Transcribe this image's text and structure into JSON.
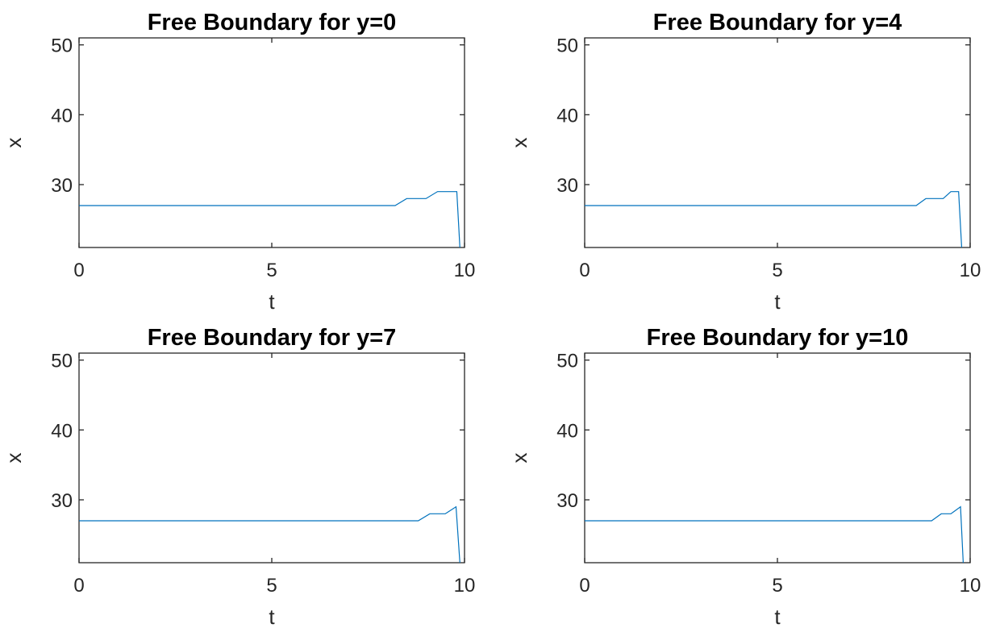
{
  "chart_data": [
    {
      "type": "line",
      "title": "Free Boundary  for y=0",
      "xlabel": "t",
      "ylabel": "x",
      "xlim": [
        0,
        10
      ],
      "ylim": [
        21,
        51
      ],
      "xticks": [
        "0",
        "5",
        "10"
      ],
      "yticks": [
        "30",
        "40",
        "50"
      ],
      "grid": false,
      "series": [
        {
          "color": "#0072BD",
          "x": [
            0,
            8.2,
            8.5,
            9.0,
            9.3,
            9.8,
            9.88
          ],
          "y": [
            27,
            27,
            28,
            28,
            29,
            29,
            21
          ]
        }
      ]
    },
    {
      "type": "line",
      "title": "Free Boundary  for y=4",
      "xlabel": "t",
      "ylabel": "x",
      "xlim": [
        0,
        10
      ],
      "ylim": [
        21,
        51
      ],
      "xticks": [
        "0",
        "5",
        "10"
      ],
      "yticks": [
        "30",
        "40",
        "50"
      ],
      "grid": false,
      "series": [
        {
          "color": "#0072BD",
          "x": [
            0,
            8.6,
            8.85,
            9.3,
            9.5,
            9.7,
            9.78
          ],
          "y": [
            27,
            27,
            28,
            28,
            29,
            29,
            21
          ]
        }
      ]
    },
    {
      "type": "line",
      "title": "Free Boundary  for y=7",
      "xlabel": "t",
      "ylabel": "x",
      "xlim": [
        0,
        10
      ],
      "ylim": [
        21,
        51
      ],
      "xticks": [
        "0",
        "5",
        "10"
      ],
      "yticks": [
        "30",
        "40",
        "50"
      ],
      "grid": false,
      "series": [
        {
          "color": "#0072BD",
          "x": [
            0,
            8.8,
            9.1,
            9.5,
            9.78,
            9.88
          ],
          "y": [
            27,
            27,
            28,
            28,
            29,
            21
          ]
        }
      ]
    },
    {
      "type": "line",
      "title": "Free Boundary  for y=10",
      "xlabel": "t",
      "ylabel": "x",
      "xlim": [
        0,
        10
      ],
      "ylim": [
        21,
        51
      ],
      "xticks": [
        "0",
        "5",
        "10"
      ],
      "yticks": [
        "30",
        "40",
        "50"
      ],
      "grid": false,
      "series": [
        {
          "color": "#0072BD",
          "x": [
            0,
            9.0,
            9.25,
            9.5,
            9.75,
            9.82
          ],
          "y": [
            27,
            27,
            28,
            28,
            29,
            21
          ]
        }
      ]
    }
  ]
}
